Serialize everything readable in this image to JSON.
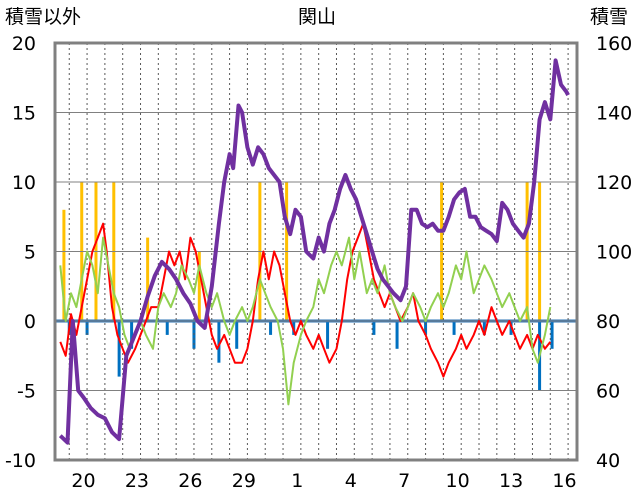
{
  "chart_data": {
    "type": "line",
    "title": "関山",
    "left_axis_label": "積雪以外",
    "right_axis_label": "積雪",
    "ylim_left": [
      -10,
      20
    ],
    "ylim_right": [
      40,
      160
    ],
    "yticks_left": [
      "20",
      "15",
      "10",
      "5",
      "0",
      "-5",
      "-10"
    ],
    "yticks_right": [
      "160",
      "140",
      "120",
      "100",
      "80",
      "60",
      "40"
    ],
    "xticks": [
      "20",
      "23",
      "26",
      "29",
      "1",
      "4",
      "7",
      "10",
      "13",
      "16"
    ],
    "colors": {
      "red": "#ff0000",
      "green": "#92d050",
      "purple": "#7030a0",
      "yellow": "#ffc000",
      "blue": "#0070c0",
      "frame": "#808080"
    },
    "series": [
      {
        "axis": "left",
        "color": "#ff0000",
        "points": [
          [
            18.5,
            -1.5
          ],
          [
            18.8,
            -2.5
          ],
          [
            19.1,
            0.5
          ],
          [
            19.4,
            -1
          ],
          [
            19.7,
            1
          ],
          [
            20,
            3
          ],
          [
            20.3,
            5
          ],
          [
            20.6,
            6
          ],
          [
            20.9,
            7
          ],
          [
            21.1,
            5
          ],
          [
            21.4,
            1
          ],
          [
            21.7,
            -1
          ],
          [
            22,
            -2
          ],
          [
            22.3,
            -3
          ],
          [
            22.7,
            -2
          ],
          [
            23,
            -1
          ],
          [
            23.3,
            0
          ],
          [
            23.6,
            1
          ],
          [
            24,
            1
          ],
          [
            24.3,
            3
          ],
          [
            24.6,
            5
          ],
          [
            24.9,
            4
          ],
          [
            25.2,
            5
          ],
          [
            25.5,
            3
          ],
          [
            25.8,
            6
          ],
          [
            26.1,
            5
          ],
          [
            26.4,
            3
          ],
          [
            26.7,
            1
          ],
          [
            27,
            -1
          ],
          [
            27.3,
            -2
          ],
          [
            27.7,
            -1
          ],
          [
            28,
            -2
          ],
          [
            28.3,
            -3
          ],
          [
            28.7,
            -3
          ],
          [
            29,
            -2
          ],
          [
            29.3,
            0
          ],
          [
            29.6,
            3
          ],
          [
            29.9,
            5
          ],
          [
            30.2,
            3
          ],
          [
            30.5,
            5
          ],
          [
            30.8,
            4
          ],
          [
            31.1,
            2
          ],
          [
            31.4,
            0
          ],
          [
            31.7,
            -1
          ],
          [
            32,
            0
          ],
          [
            32.3,
            -1
          ],
          [
            32.7,
            -2
          ],
          [
            33,
            -1
          ],
          [
            33.3,
            -2
          ],
          [
            33.6,
            -3
          ],
          [
            34,
            -2
          ],
          [
            34.3,
            0
          ],
          [
            34.6,
            3
          ],
          [
            34.9,
            5
          ],
          [
            35.2,
            6
          ],
          [
            35.5,
            7
          ],
          [
            35.8,
            5
          ],
          [
            36.1,
            3
          ],
          [
            36.4,
            2
          ],
          [
            36.7,
            1
          ],
          [
            37,
            2
          ],
          [
            37.3,
            1
          ],
          [
            37.6,
            0
          ],
          [
            38,
            1
          ],
          [
            38.3,
            2
          ],
          [
            38.6,
            0
          ],
          [
            39,
            -1
          ],
          [
            39.3,
            -2
          ],
          [
            39.7,
            -3
          ],
          [
            40,
            -4
          ],
          [
            40.3,
            -3
          ],
          [
            40.7,
            -2
          ],
          [
            41,
            -1
          ],
          [
            41.3,
            -2
          ],
          [
            41.7,
            -1
          ],
          [
            42,
            0
          ],
          [
            42.3,
            -1
          ],
          [
            42.7,
            1
          ],
          [
            43,
            0
          ],
          [
            43.3,
            -1
          ],
          [
            43.7,
            0
          ],
          [
            44,
            -1
          ],
          [
            44.3,
            -2
          ],
          [
            44.7,
            -1
          ],
          [
            45,
            -2
          ],
          [
            45.3,
            -1
          ],
          [
            45.7,
            -2
          ],
          [
            46,
            -1.5
          ]
        ]
      },
      {
        "axis": "left",
        "color": "#92d050",
        "points": [
          [
            18.5,
            4
          ],
          [
            18.8,
            0
          ],
          [
            19.1,
            2
          ],
          [
            19.4,
            1
          ],
          [
            19.7,
            3
          ],
          [
            20,
            5
          ],
          [
            20.3,
            4
          ],
          [
            20.6,
            2
          ],
          [
            20.9,
            6
          ],
          [
            21.2,
            4
          ],
          [
            21.5,
            2
          ],
          [
            21.8,
            1
          ],
          [
            22.1,
            -1
          ],
          [
            22.4,
            -2
          ],
          [
            22.7,
            -1
          ],
          [
            23,
            0
          ],
          [
            23.3,
            -1
          ],
          [
            23.7,
            -2
          ],
          [
            24,
            1
          ],
          [
            24.3,
            2
          ],
          [
            24.7,
            1
          ],
          [
            25,
            2
          ],
          [
            25.3,
            4
          ],
          [
            25.7,
            3
          ],
          [
            26,
            2
          ],
          [
            26.3,
            4
          ],
          [
            26.7,
            2
          ],
          [
            27,
            1
          ],
          [
            27.3,
            2
          ],
          [
            27.7,
            0
          ],
          [
            28,
            -1
          ],
          [
            28.3,
            0
          ],
          [
            28.7,
            1
          ],
          [
            29,
            0
          ],
          [
            29.3,
            1
          ],
          [
            29.7,
            3
          ],
          [
            30,
            2
          ],
          [
            30.3,
            1
          ],
          [
            30.7,
            0
          ],
          [
            31,
            -2
          ],
          [
            31.3,
            -6
          ],
          [
            31.6,
            -3
          ],
          [
            32,
            -1
          ],
          [
            32.3,
            0
          ],
          [
            32.7,
            1
          ],
          [
            33,
            3
          ],
          [
            33.3,
            2
          ],
          [
            33.7,
            4
          ],
          [
            34,
            5
          ],
          [
            34.3,
            4
          ],
          [
            34.7,
            6
          ],
          [
            35,
            3
          ],
          [
            35.3,
            5
          ],
          [
            35.7,
            2
          ],
          [
            36,
            3
          ],
          [
            36.3,
            2
          ],
          [
            36.7,
            4
          ],
          [
            37,
            2
          ],
          [
            37.3,
            1
          ],
          [
            37.7,
            0
          ],
          [
            38,
            1
          ],
          [
            38.3,
            2
          ],
          [
            38.7,
            1
          ],
          [
            39,
            0
          ],
          [
            39.3,
            1
          ],
          [
            39.7,
            2
          ],
          [
            40,
            1
          ],
          [
            40.3,
            2
          ],
          [
            40.7,
            4
          ],
          [
            41,
            3
          ],
          [
            41.3,
            5
          ],
          [
            41.7,
            2
          ],
          [
            42,
            3
          ],
          [
            42.3,
            4
          ],
          [
            42.7,
            3
          ],
          [
            43,
            2
          ],
          [
            43.3,
            1
          ],
          [
            43.7,
            2
          ],
          [
            44,
            1
          ],
          [
            44.3,
            0
          ],
          [
            44.7,
            1
          ],
          [
            45,
            -2
          ],
          [
            45.3,
            -3
          ],
          [
            45.7,
            -1
          ],
          [
            46,
            1
          ]
        ]
      },
      {
        "axis": "right",
        "color": "#7030a0",
        "points": [
          [
            18.5,
            47
          ],
          [
            18.9,
            45
          ],
          [
            19.2,
            80
          ],
          [
            19.5,
            60
          ],
          [
            19.8,
            58
          ],
          [
            20.2,
            55
          ],
          [
            20.6,
            53
          ],
          [
            21,
            52
          ],
          [
            21.4,
            48
          ],
          [
            21.8,
            46
          ],
          [
            22.2,
            70
          ],
          [
            22.6,
            75
          ],
          [
            23,
            80
          ],
          [
            23.4,
            87
          ],
          [
            23.8,
            93
          ],
          [
            24.2,
            97
          ],
          [
            24.6,
            95
          ],
          [
            25,
            92
          ],
          [
            25.4,
            88
          ],
          [
            25.8,
            85
          ],
          [
            26.2,
            80
          ],
          [
            26.6,
            78
          ],
          [
            27,
            90
          ],
          [
            27.4,
            108
          ],
          [
            27.7,
            120
          ],
          [
            28,
            128
          ],
          [
            28.2,
            124
          ],
          [
            28.5,
            142
          ],
          [
            28.7,
            140
          ],
          [
            29,
            130
          ],
          [
            29.3,
            125
          ],
          [
            29.6,
            130
          ],
          [
            29.9,
            128
          ],
          [
            30.2,
            124
          ],
          [
            30.5,
            122
          ],
          [
            30.8,
            120
          ],
          [
            31.1,
            110
          ],
          [
            31.4,
            105
          ],
          [
            31.7,
            112
          ],
          [
            32,
            110
          ],
          [
            32.3,
            100
          ],
          [
            32.7,
            98
          ],
          [
            33,
            104
          ],
          [
            33.3,
            100
          ],
          [
            33.6,
            108
          ],
          [
            33.9,
            112
          ],
          [
            34.2,
            118
          ],
          [
            34.5,
            122
          ],
          [
            34.8,
            118
          ],
          [
            35.1,
            115
          ],
          [
            35.4,
            110
          ],
          [
            35.7,
            105
          ],
          [
            36,
            100
          ],
          [
            36.3,
            95
          ],
          [
            36.6,
            92
          ],
          [
            36.9,
            90
          ],
          [
            37.2,
            88
          ],
          [
            37.6,
            86
          ],
          [
            37.9,
            90
          ],
          [
            38.2,
            112
          ],
          [
            38.5,
            112
          ],
          [
            38.8,
            108
          ],
          [
            39.1,
            107
          ],
          [
            39.4,
            108
          ],
          [
            39.7,
            106
          ],
          [
            40,
            106
          ],
          [
            40.3,
            110
          ],
          [
            40.6,
            115
          ],
          [
            40.9,
            117
          ],
          [
            41.2,
            118
          ],
          [
            41.5,
            110
          ],
          [
            41.8,
            110
          ],
          [
            42.1,
            107
          ],
          [
            42.4,
            106
          ],
          [
            42.7,
            105
          ],
          [
            43,
            103
          ],
          [
            43.3,
            114
          ],
          [
            43.6,
            112
          ],
          [
            43.9,
            108
          ],
          [
            44.2,
            106
          ],
          [
            44.5,
            104
          ],
          [
            44.8,
            108
          ],
          [
            45.1,
            120
          ],
          [
            45.4,
            138
          ],
          [
            45.7,
            143
          ],
          [
            46,
            138
          ],
          [
            46.3,
            155
          ],
          [
            46.6,
            148
          ],
          [
            46.9,
            146
          ],
          [
            47,
            145
          ]
        ]
      }
    ],
    "bars": [
      {
        "color": "#ffc000",
        "x": [
          18.7,
          19.7,
          20.5,
          21.5,
          23.4,
          26.3,
          29.7,
          31.2,
          39.9,
          44.7,
          45.4
        ],
        "values": [
          8,
          10,
          10,
          10,
          6,
          5,
          10,
          10,
          10,
          10,
          10
        ]
      },
      {
        "color": "#0070c0",
        "x": [
          19,
          20,
          21.8,
          22.5,
          24.5,
          26,
          27.4,
          28.4,
          30.3,
          31.6,
          33.5,
          36.1,
          37.4,
          39,
          40.6,
          42.3,
          43.8,
          45.4,
          46.1
        ],
        "values": [
          -1,
          -1,
          -4,
          -2,
          -1,
          -2,
          -3,
          -2,
          -1,
          -1,
          -2,
          -1,
          -2,
          -1,
          -1,
          -1,
          -1,
          -5,
          -2
        ]
      }
    ]
  }
}
